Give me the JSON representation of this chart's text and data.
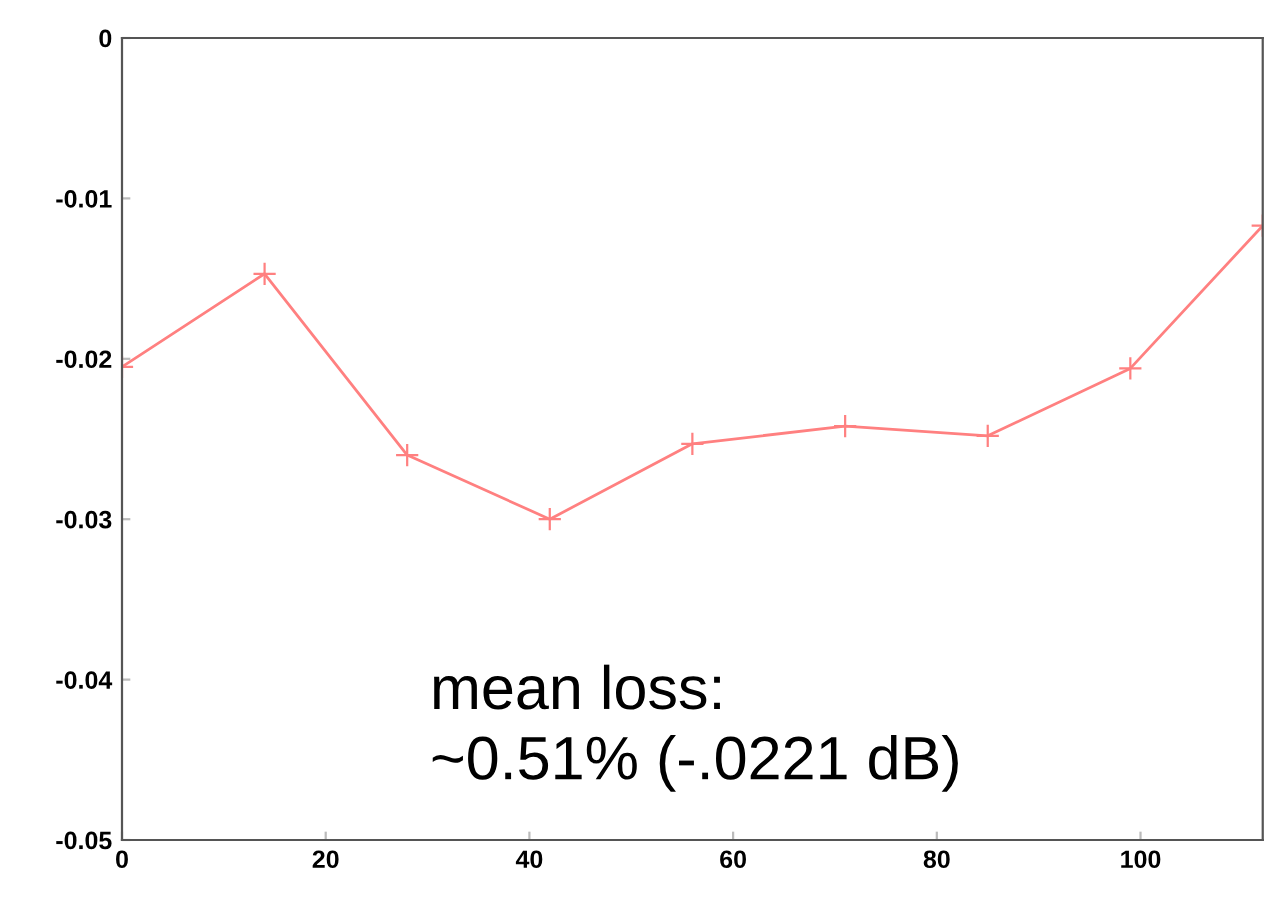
{
  "chart_data": {
    "type": "line",
    "x": [
      0,
      14,
      28,
      42,
      56,
      71,
      85,
      99,
      112
    ],
    "series": [
      {
        "color": "#ff8080",
        "values": [
          -0.0205,
          -0.0147,
          -0.026,
          -0.03,
          -0.0253,
          -0.0242,
          -0.0248,
          -0.0206,
          -0.0117
        ]
      }
    ],
    "xlim": [
      0,
      112
    ],
    "ylim": [
      -0.05,
      0
    ],
    "xticks": [
      0,
      20,
      40,
      60,
      80,
      100
    ],
    "yticks": [
      {
        "value": 0,
        "label": "0"
      },
      {
        "value": -0.01,
        "label": "-0.01"
      },
      {
        "value": -0.02,
        "label": "-0.02"
      },
      {
        "value": -0.03,
        "label": "-0.03"
      },
      {
        "value": -0.04,
        "label": "-0.04"
      },
      {
        "value": -0.05,
        "label": "-0.05"
      }
    ],
    "marker": "cross",
    "line_style": "solid",
    "grid": false,
    "annotations": [
      "mean loss:\n~0.51% (-.0221 dB)"
    ]
  }
}
